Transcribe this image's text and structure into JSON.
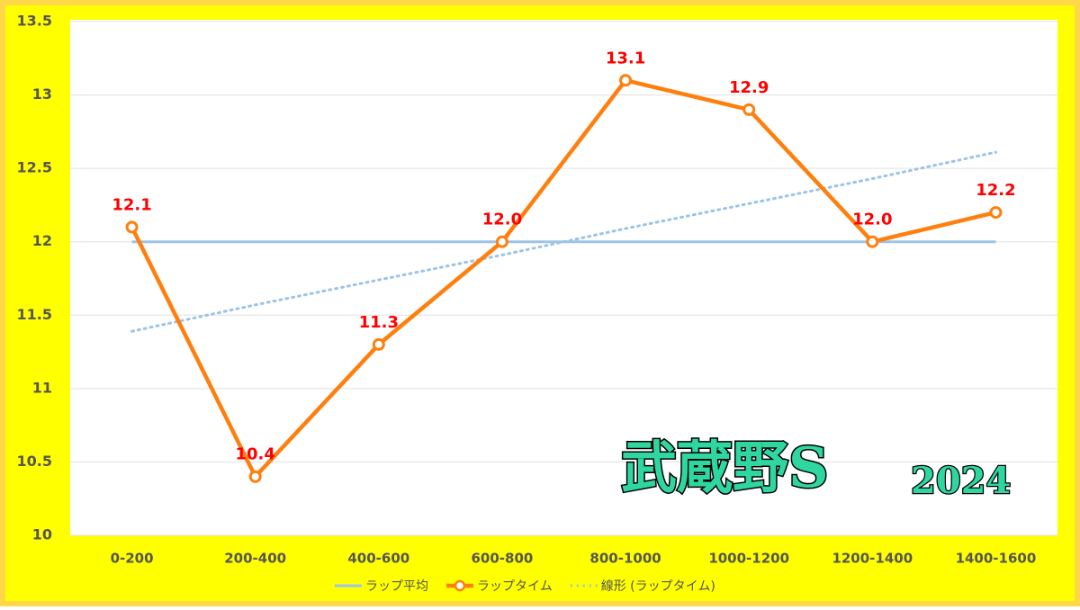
{
  "chart_data": {
    "type": "line",
    "categories": [
      "0-200",
      "200-400",
      "400-600",
      "600-800",
      "800-1000",
      "1000-1200",
      "1200-1400",
      "1400-1600"
    ],
    "series": [
      {
        "name": "ラップ平均",
        "color": "#9dc3e6",
        "style": "solid",
        "values": [
          12.0,
          12.0,
          12.0,
          12.0,
          12.0,
          12.0,
          12.0,
          12.0
        ]
      },
      {
        "name": "ラップタイム",
        "color": "#ff7f0e",
        "style": "marker",
        "values": [
          12.1,
          10.4,
          11.3,
          12.0,
          13.1,
          12.9,
          12.0,
          12.2
        ],
        "value_labels": [
          "12.1",
          "10.4",
          "11.3",
          "12.0",
          "13.1",
          "12.9",
          "12.0",
          "12.2"
        ]
      },
      {
        "name": "線形 (ラップタイム)",
        "color": "#9dc3e6",
        "style": "dotted",
        "values": [
          11.39,
          11.57,
          11.74,
          11.91,
          12.09,
          12.26,
          12.43,
          12.61
        ]
      }
    ],
    "ylim": [
      10,
      13.5
    ],
    "yticks": [
      10,
      10.5,
      11,
      11.5,
      12,
      12.5,
      13,
      13.5
    ],
    "grid": true,
    "annotation": {
      "race": "武蔵野S",
      "year": "2024"
    }
  }
}
